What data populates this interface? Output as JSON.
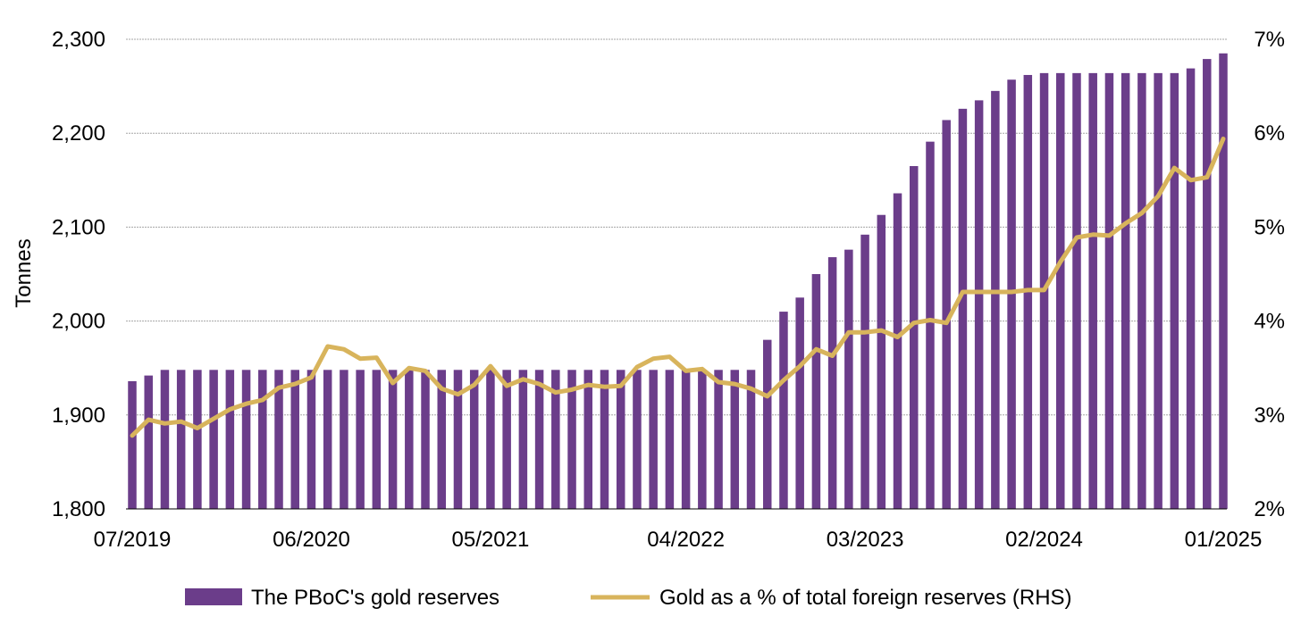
{
  "chart_data": {
    "type": "bar",
    "ylabel": "Tonnes",
    "ylim": [
      1800,
      2300
    ],
    "y_ticks": [
      "1,800",
      "1,900",
      "2,000",
      "2,100",
      "2,200",
      "2,300"
    ],
    "y2lim": [
      2,
      7
    ],
    "y2_ticks": [
      "2%",
      "3%",
      "4%",
      "5%",
      "6%",
      "7%"
    ],
    "x_tick_labels": [
      "07/2019",
      "06/2020",
      "05/2021",
      "04/2022",
      "03/2023",
      "02/2024",
      "01/2025"
    ],
    "grid": true,
    "legend_position": "bottom",
    "colors": {
      "bars": "#6b3d8a",
      "line": "#d8b45c",
      "grid": "#a6a6a6"
    },
    "series": [
      {
        "name": "The PBoC's gold reserves",
        "type": "bar",
        "axis": "left",
        "values": [
          1936,
          1942,
          1948,
          1948,
          1948,
          1948,
          1948,
          1948,
          1948,
          1948,
          1948,
          1948,
          1948,
          1948,
          1948,
          1948,
          1948,
          1948,
          1948,
          1948,
          1948,
          1948,
          1948,
          1948,
          1948,
          1948,
          1948,
          1948,
          1948,
          1948,
          1948,
          1948,
          1948,
          1948,
          1948,
          1948,
          1948,
          1948,
          1948,
          1980,
          2010,
          2025,
          2050,
          2068,
          2076,
          2092,
          2113,
          2136,
          2165,
          2191,
          2214,
          2226,
          2235,
          2245,
          2257,
          2262,
          2264,
          2264,
          2264,
          2264,
          2264,
          2264,
          2264,
          2264,
          2264,
          2269,
          2279,
          2285
        ]
      },
      {
        "name": "Gold as a % of total foreign reserves (RHS)",
        "type": "line",
        "axis": "right",
        "values": [
          2.78,
          2.95,
          2.91,
          2.93,
          2.86,
          2.96,
          3.06,
          3.12,
          3.16,
          3.29,
          3.33,
          3.4,
          3.73,
          3.7,
          3.6,
          3.61,
          3.34,
          3.5,
          3.47,
          3.28,
          3.22,
          3.32,
          3.52,
          3.31,
          3.38,
          3.33,
          3.24,
          3.27,
          3.32,
          3.3,
          3.31,
          3.51,
          3.6,
          3.62,
          3.47,
          3.49,
          3.35,
          3.33,
          3.28,
          3.2,
          3.37,
          3.52,
          3.7,
          3.63,
          3.88,
          3.88,
          3.9,
          3.83,
          3.98,
          4.01,
          3.98,
          4.31,
          4.31,
          4.31,
          4.31,
          4.33,
          4.33,
          4.63,
          4.89,
          4.92,
          4.91,
          5.04,
          5.15,
          5.33,
          5.63,
          5.5,
          5.53,
          5.94
        ]
      }
    ]
  }
}
